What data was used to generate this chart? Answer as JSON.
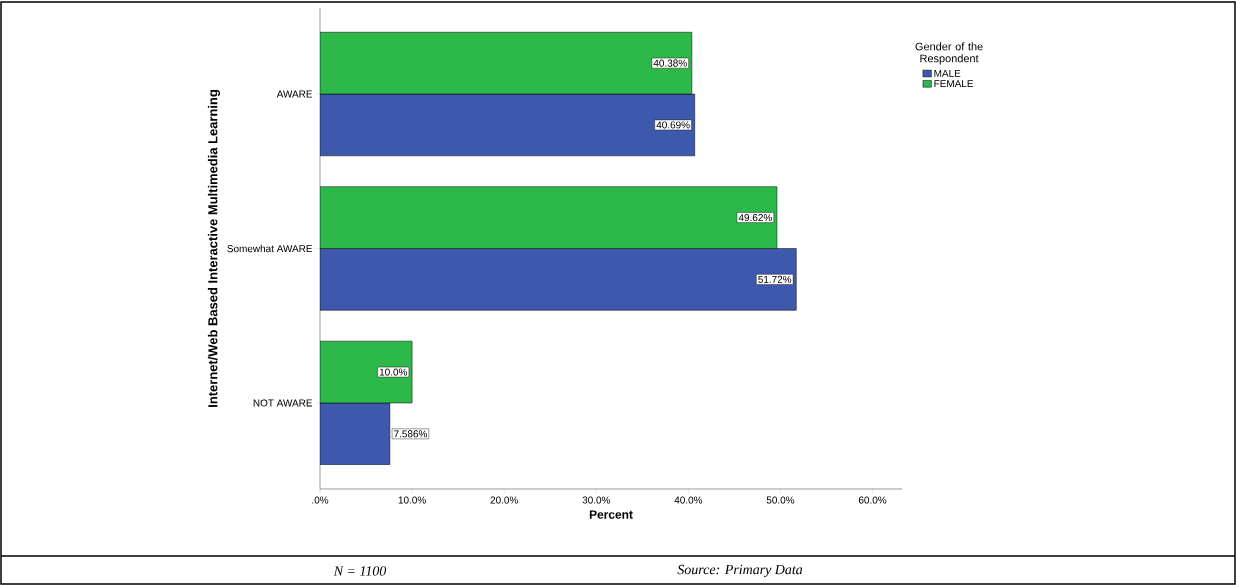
{
  "chart_data": {
    "type": "bar",
    "orientation": "horizontal",
    "xlabel": "Percent",
    "ylabel": "Internet/Web Based Interactive Multimedia Learning",
    "legend_title": "Gender of the Respondent",
    "categories": [
      "AWARE",
      "Somewhat AWARE",
      "NOT AWARE"
    ],
    "series": [
      {
        "name": "MALE",
        "color": "#3e58ac",
        "values": [
          40.69,
          51.72,
          7.586
        ],
        "value_labels": [
          "40.69%",
          "51.72%",
          "7.586%"
        ]
      },
      {
        "name": "FEMALE",
        "color": "#2db84a",
        "values": [
          40.38,
          49.62,
          10.0
        ],
        "value_labels": [
          "40.38%",
          "49.62%",
          "10.0%"
        ]
      }
    ],
    "xlim": [
      0,
      63.2
    ],
    "xticks": [
      {
        "value": 0,
        "label": ".0%"
      },
      {
        "value": 10,
        "label": "10.0%"
      },
      {
        "value": 20,
        "label": "20.0%"
      },
      {
        "value": 30,
        "label": "30.0%"
      },
      {
        "value": 40,
        "label": "40.0%"
      },
      {
        "value": 50,
        "label": "50.0%"
      },
      {
        "value": 60,
        "label": "60.0%"
      }
    ],
    "legend": "top right",
    "annotations": [
      "N = 1100",
      "Source: Primary Data"
    ]
  }
}
